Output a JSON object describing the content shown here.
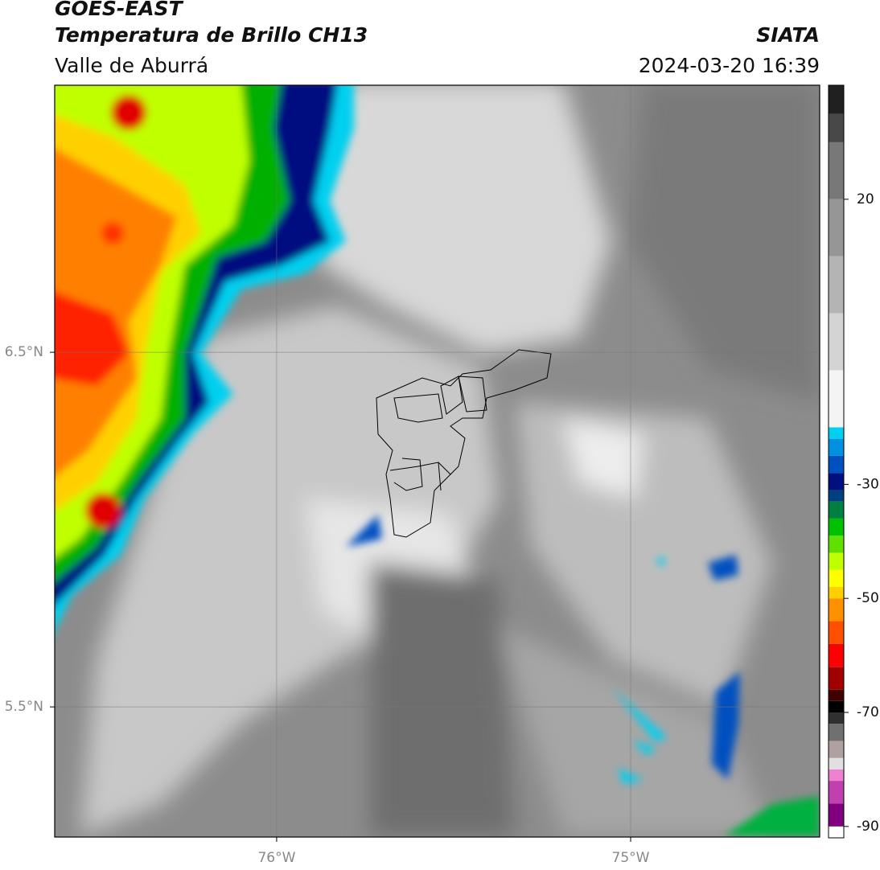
{
  "header": {
    "title": "GOES-EAST",
    "subtitle": "Temperatura de Brillo CH13",
    "region": "Valle de Aburrá",
    "source": "SIATA",
    "datetime": "2024-03-20 16:39"
  },
  "map": {
    "xlim": [
      -76.627,
      -74.466
    ],
    "ylim": [
      5.133,
      7.253
    ],
    "xticks": [
      {
        "value": -76,
        "label": "76°W"
      },
      {
        "value": -75,
        "label": "75°W"
      }
    ],
    "yticks": [
      {
        "value": 6.5,
        "label": "6.5°N"
      },
      {
        "value": 5.5,
        "label": "5.5°N"
      }
    ],
    "grid": true
  },
  "colorbar": {
    "lim": [
      -92,
      40
    ],
    "ticks": [
      20,
      -30,
      -50,
      -70,
      -90
    ],
    "stops": [
      [
        -92,
        "#ffffff"
      ],
      [
        -90,
        "#800080"
      ],
      [
        -86,
        "#c040b0"
      ],
      [
        -82,
        "#f080d0"
      ],
      [
        -80,
        "#e0e0e0"
      ],
      [
        -78,
        "#b0a0a0"
      ],
      [
        -75,
        "#707070"
      ],
      [
        -72,
        "#303030"
      ],
      [
        -70,
        "#000000"
      ],
      [
        -68,
        "#400000"
      ],
      [
        -66,
        "#a00000"
      ],
      [
        -62,
        "#ff0000"
      ],
      [
        -58,
        "#ff5000"
      ],
      [
        -54,
        "#ff9000"
      ],
      [
        -50,
        "#ffd000"
      ],
      [
        -48,
        "#ffff00"
      ],
      [
        -45,
        "#c0ff00"
      ],
      [
        -42,
        "#60e000"
      ],
      [
        -39,
        "#00c000"
      ],
      [
        -36,
        "#008040"
      ],
      [
        -33,
        "#004080"
      ],
      [
        -31,
        "#001080"
      ],
      [
        -28,
        "#0050c0"
      ],
      [
        -25,
        "#0090e0"
      ],
      [
        -22,
        "#00d0f0"
      ],
      [
        -20,
        "#f4f4f4"
      ],
      [
        -10,
        "#d4d4d4"
      ],
      [
        0,
        "#b4b4b4"
      ],
      [
        10,
        "#969696"
      ],
      [
        20,
        "#787878"
      ],
      [
        30,
        "#484848"
      ],
      [
        35,
        "#202020"
      ]
    ]
  }
}
